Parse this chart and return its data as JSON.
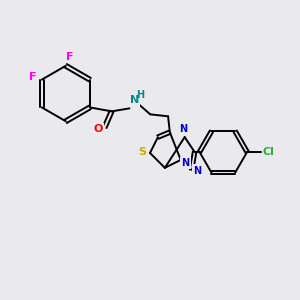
{
  "background_color": "#eaeaee",
  "bond_color": "#000000",
  "heteroatom_colors": {
    "F": "#ff00ff",
    "O": "#ff0000",
    "N": "#0000cc",
    "S": "#ccaa00",
    "Cl": "#33aa33",
    "NH": "#008888"
  },
  "figsize": [
    3.0,
    3.0
  ],
  "dpi": 100
}
